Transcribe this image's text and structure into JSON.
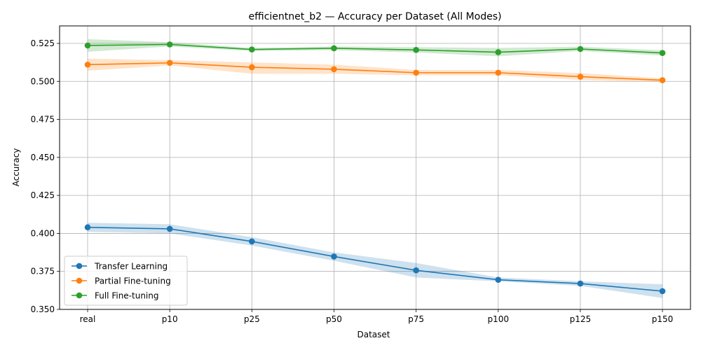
{
  "chart_data": {
    "type": "line",
    "title": "efficientnet_b2 — Accuracy per Dataset (All Modes)",
    "xlabel": "Dataset",
    "ylabel": "Accuracy",
    "categories": [
      "real",
      "p10",
      "p25",
      "p50",
      "p75",
      "p100",
      "p125",
      "p150"
    ],
    "ylim": [
      0.35,
      0.5365
    ],
    "yticks": [
      0.35,
      0.375,
      0.4,
      0.425,
      0.45,
      0.475,
      0.5,
      0.525
    ],
    "ytick_labels": [
      "0.350",
      "0.375",
      "0.400",
      "0.425",
      "0.450",
      "0.475",
      "0.500",
      "0.525"
    ],
    "grid": true,
    "legend_position": "lower-left",
    "series": [
      {
        "name": "Transfer Learning",
        "color": "#1f77b4",
        "values": [
          0.404,
          0.403,
          0.3947,
          0.3848,
          0.3757,
          0.3695,
          0.367,
          0.362
        ],
        "lower": [
          0.401,
          0.4,
          0.392,
          0.382,
          0.371,
          0.3685,
          0.3655,
          0.3575
        ],
        "upper": [
          0.407,
          0.406,
          0.3975,
          0.3875,
          0.3805,
          0.371,
          0.3685,
          0.3665
        ]
      },
      {
        "name": "Partial Fine-tuning",
        "color": "#ff7f0e",
        "values": [
          0.511,
          0.5122,
          0.5093,
          0.508,
          0.5057,
          0.5057,
          0.5031,
          0.5008
        ],
        "lower": [
          0.507,
          0.5105,
          0.505,
          0.505,
          0.504,
          0.504,
          0.501,
          0.4995
        ],
        "upper": [
          0.515,
          0.514,
          0.5125,
          0.511,
          0.5075,
          0.5075,
          0.5055,
          0.502
        ]
      },
      {
        "name": "Full Fine-tuning",
        "color": "#2ca02c",
        "values": [
          0.5236,
          0.5243,
          0.521,
          0.5218,
          0.5207,
          0.5192,
          0.5213,
          0.5187
        ],
        "lower": [
          0.5195,
          0.523,
          0.52,
          0.5205,
          0.519,
          0.5165,
          0.52,
          0.517
        ],
        "upper": [
          0.5278,
          0.5258,
          0.522,
          0.523,
          0.5225,
          0.522,
          0.5228,
          0.5205
        ]
      }
    ]
  }
}
